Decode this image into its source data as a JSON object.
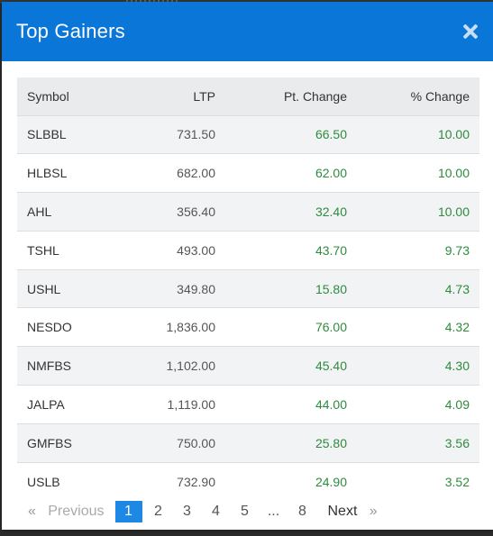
{
  "modal": {
    "title": "Top Gainers"
  },
  "table": {
    "headers": {
      "symbol": "Symbol",
      "ltp": "LTP",
      "pt_change": "Pt. Change",
      "pct_change": "% Change"
    },
    "rows": [
      {
        "symbol": "SLBBL",
        "ltp": "731.50",
        "pt_change": "66.50",
        "pct_change": "10.00"
      },
      {
        "symbol": "HLBSL",
        "ltp": "682.00",
        "pt_change": "62.00",
        "pct_change": "10.00"
      },
      {
        "symbol": "AHL",
        "ltp": "356.40",
        "pt_change": "32.40",
        "pct_change": "10.00"
      },
      {
        "symbol": "TSHL",
        "ltp": "493.00",
        "pt_change": "43.70",
        "pct_change": "9.73"
      },
      {
        "symbol": "USHL",
        "ltp": "349.80",
        "pt_change": "15.80",
        "pct_change": "4.73"
      },
      {
        "symbol": "NESDO",
        "ltp": "1,836.00",
        "pt_change": "76.00",
        "pct_change": "4.32"
      },
      {
        "symbol": "NMFBS",
        "ltp": "1,102.00",
        "pt_change": "45.40",
        "pct_change": "4.30"
      },
      {
        "symbol": "JALPA",
        "ltp": "1,119.00",
        "pt_change": "44.00",
        "pct_change": "4.09"
      },
      {
        "symbol": "GMFBS",
        "ltp": "750.00",
        "pt_change": "25.80",
        "pct_change": "3.56"
      },
      {
        "symbol": "USLB",
        "ltp": "732.90",
        "pt_change": "24.90",
        "pct_change": "3.52"
      }
    ]
  },
  "pagination": {
    "prev_arrow": "«",
    "prev_label": "Previous",
    "pages": [
      "1",
      "2",
      "3",
      "4",
      "5"
    ],
    "ellipsis": "...",
    "last_page": "8",
    "next_label": "Next",
    "next_arrow": "»",
    "current_page": "1"
  },
  "colors": {
    "header_bg": "#0a76d8",
    "positive": "#2e8b3e",
    "active_page": "#1e88e5"
  },
  "icons": {
    "close": "close-icon"
  }
}
